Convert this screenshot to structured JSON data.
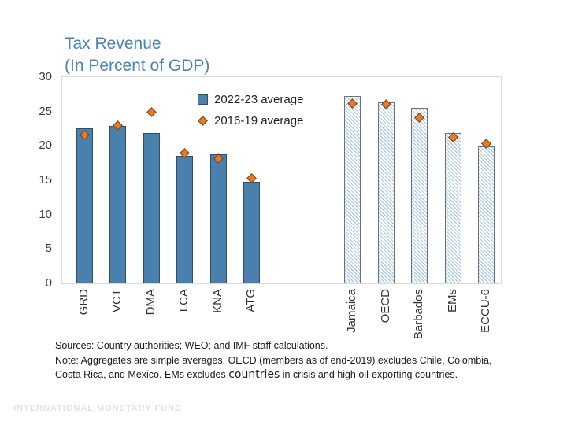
{
  "title": {
    "line1": "Tax Revenue",
    "line2": "(In Percent of GDP)"
  },
  "legend": {
    "series1": "2022-23 average",
    "series2": "2016-19 average"
  },
  "chart_data": {
    "type": "bar",
    "title": "Tax Revenue",
    "subtitle": "(In Percent of GDP)",
    "ylim": [
      0,
      30
    ],
    "yticks": [
      0,
      5,
      10,
      15,
      20,
      25,
      30
    ],
    "grid": false,
    "legend_position": "inside-top-left-of-plot",
    "categories": [
      "GRD",
      "VCT",
      "DMA",
      "LCA",
      "KNA",
      "ATG",
      "Jamaica",
      "OECD",
      "Barbados",
      "EMs",
      "ECCU-6"
    ],
    "slots": [
      0,
      1,
      2,
      3,
      4,
      5,
      8,
      9,
      10,
      11,
      12
    ],
    "hatched": [
      false,
      false,
      false,
      false,
      false,
      false,
      true,
      true,
      true,
      true,
      true
    ],
    "series": [
      {
        "name": "2022-23 average",
        "type": "bar",
        "values": [
          22.6,
          22.9,
          21.9,
          18.5,
          18.8,
          14.8,
          27.2,
          26.3,
          25.5,
          21.9,
          19.9
        ]
      },
      {
        "name": "2016-19 average",
        "type": "scatter-diamond",
        "values": [
          21.6,
          23.0,
          24.9,
          18.9,
          18.1,
          15.3,
          26.2,
          26.0,
          24.1,
          21.2,
          20.3
        ]
      }
    ]
  },
  "footer": {
    "sources": "Sources: Country authorities; WEO; and IMF staff calculations.",
    "note_line1": "Note: Aggregates are simple averages. OECD (members as of end-2019) excludes Chile, Colombia,",
    "note_line2_pre": "Costa Rica, and Mexico. EMs excludes ",
    "note_line2_em": "countries",
    "note_line2_post": " in crisis and high oil-exporting countries."
  },
  "brand": "INTERNATIONAL MONETARY FUND",
  "colors": {
    "title": "#4585B5",
    "bar_fill": "#4A80AD",
    "bar_border": "#2E4E66",
    "hatch_stripe": "#AECBE4",
    "hatch_border": "#667380",
    "marker_fill": "#E57A28",
    "marker_border": "#7A3C10",
    "plot_border": "#D9D9D9",
    "axis_text": "#3B3B3B",
    "brand_text": "#E3E3E3"
  }
}
